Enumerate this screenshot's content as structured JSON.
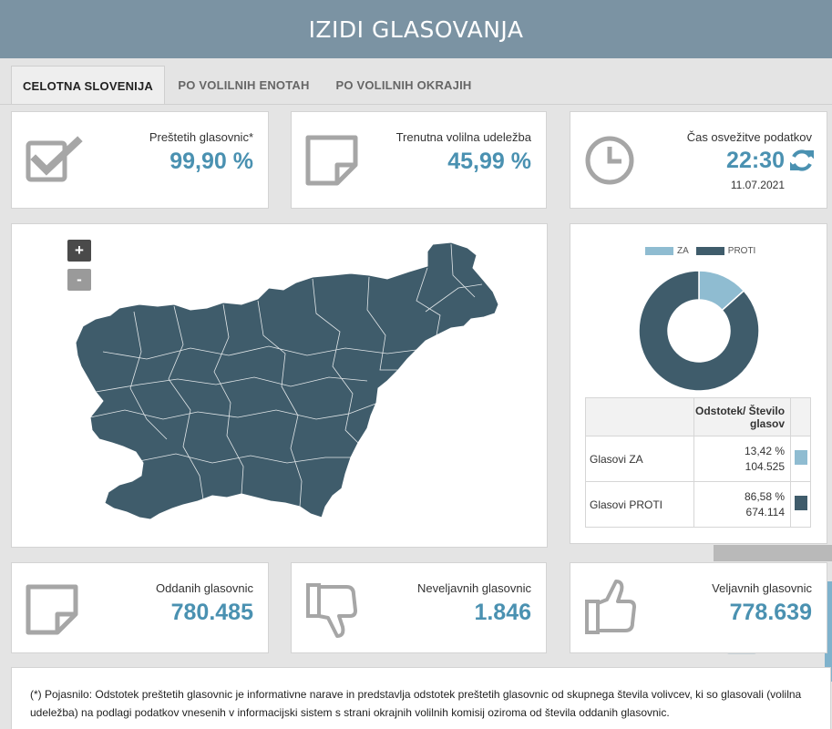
{
  "header": {
    "title": "IZIDI GLASOVANJA"
  },
  "tabs": [
    {
      "label": "CELOTNA SLOVENIJA",
      "active": true
    },
    {
      "label": "PO VOLILNIH ENOTAH",
      "active": false
    },
    {
      "label": "PO VOLILNIH OKRAJIH",
      "active": false
    }
  ],
  "stats": {
    "counted": {
      "label": "Preštetih glasovnic*",
      "value": "99,90 %",
      "icon": "checkbox-icon"
    },
    "turnout": {
      "label": "Trenutna volilna udeležba",
      "value": "45,99 %",
      "icon": "note-icon"
    },
    "refresh": {
      "label": "Čas osvežitve podatkov",
      "time": "22:30",
      "date": "11.07.2021",
      "icon": "clock-icon"
    }
  },
  "map": {
    "zoom_in": "+",
    "zoom_out": "-"
  },
  "results": {
    "legend": [
      {
        "name": "ZA",
        "color": "#8fbcd1"
      },
      {
        "name": "PROTI",
        "color": "#3f5c6b"
      }
    ],
    "header": "Odstotek/ Število glasov",
    "rows": [
      {
        "name": "Glasovi ZA",
        "percent": "13,42 %",
        "votes": "104.525",
        "share": 13.42,
        "color": "#8fbcd1"
      },
      {
        "name": "Glasovi PROTI",
        "percent": "86,58 %",
        "votes": "674.114",
        "share": 86.58,
        "color": "#3f5c6b"
      }
    ]
  },
  "totals": {
    "cast": {
      "label": "Oddanih glasovnic",
      "value": "780.485",
      "icon": "note-icon"
    },
    "invalid": {
      "label": "Neveljavnih glasovnic",
      "value": "1.846",
      "icon": "thumbs-down-icon"
    },
    "valid": {
      "label": "Veljavnih glasovnic",
      "value": "778.639",
      "icon": "thumbs-up-icon"
    }
  },
  "footnote": "(*) Pojasnilo: Odstotek preštetih glasovnic je informativne narave in predstavlja odstotek preštetih glasovnic od skupnega števila volivcev, ki so glasovali (volilna udeležba) na podlagi podatkov vnesenih v informacijski sistem s strani okrajnih volilnih komisij oziroma od števila oddanih glasovnic."
}
